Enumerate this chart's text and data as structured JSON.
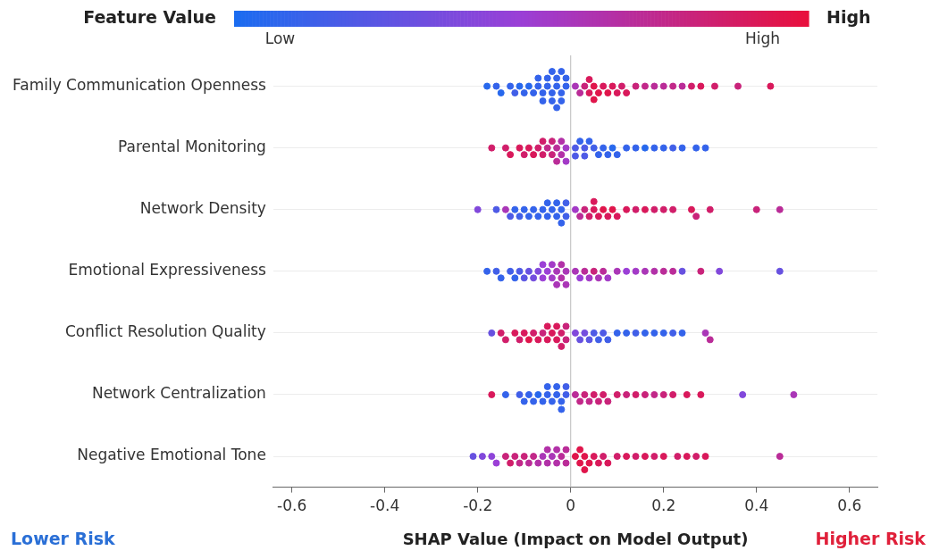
{
  "chart_data": {
    "type": "scatter",
    "orientation": "horizontal",
    "xlabel": "SHAP Value (Impact on Model Output)",
    "clabel": "Feature Value",
    "clim": [
      0,
      1
    ],
    "cticks": [
      {
        "value": 0.08,
        "label": "Low"
      },
      {
        "value": 0.92,
        "label": "High"
      }
    ],
    "annotations": [
      "High",
      "Lower Risk",
      "Higher Risk"
    ],
    "categories": [
      "Family Communication Openness",
      "Parental Monitoring",
      "Network Density",
      "Emotional Expressiveness",
      "Conflict Resolution Quality",
      "Network Centralization",
      "Negative Emotional Tone"
    ],
    "xlim": [
      -0.64,
      0.66
    ],
    "xticks": [
      -0.6,
      -0.4,
      -0.2,
      0,
      0.2,
      0.4,
      0.6
    ],
    "grid": "y",
    "legend": false,
    "marker": "circle",
    "ref_lines": [
      {
        "axis": "x",
        "value": 0,
        "color": "#bbbbbb"
      }
    ],
    "series": [
      {
        "x": [
          "Family Communication Openness",
          "Family Communication Openness",
          "Family Communication Openness",
          "Family Communication Openness",
          "Family Communication Openness",
          "Family Communication Openness",
          "Family Communication Openness",
          "Family Communication Openness",
          "Family Communication Openness",
          "Family Communication Openness",
          "Family Communication Openness",
          "Family Communication Openness",
          "Family Communication Openness",
          "Family Communication Openness",
          "Family Communication Openness",
          "Family Communication Openness",
          "Family Communication Openness",
          "Family Communication Openness",
          "Family Communication Openness",
          "Family Communication Openness",
          "Family Communication Openness",
          "Family Communication Openness",
          "Family Communication Openness",
          "Family Communication Openness",
          "Family Communication Openness",
          "Family Communication Openness",
          "Family Communication Openness",
          "Family Communication Openness",
          "Family Communication Openness",
          "Family Communication Openness",
          "Family Communication Openness",
          "Family Communication Openness",
          "Family Communication Openness",
          "Family Communication Openness",
          "Family Communication Openness",
          "Family Communication Openness",
          "Family Communication Openness",
          "Family Communication Openness",
          "Family Communication Openness",
          "Family Communication Openness",
          "Family Communication Openness",
          "Family Communication Openness",
          "Family Communication Openness",
          "Family Communication Openness",
          "Family Communication Openness",
          "Family Communication Openness",
          "Family Communication Openness",
          "Family Communication Openness",
          "Family Communication Openness",
          "Family Communication Openness",
          "Family Communication Openness"
        ],
        "values": [
          -0.18,
          -0.16,
          -0.15,
          -0.13,
          -0.12,
          -0.11,
          -0.1,
          -0.09,
          -0.08,
          -0.07,
          -0.07,
          -0.06,
          -0.06,
          -0.05,
          -0.05,
          -0.04,
          -0.04,
          -0.04,
          -0.03,
          -0.03,
          -0.03,
          -0.02,
          -0.02,
          -0.02,
          -0.01,
          -0.01,
          0.01,
          0.02,
          0.03,
          0.04,
          0.04,
          0.05,
          0.05,
          0.06,
          0.07,
          0.08,
          0.09,
          0.1,
          0.11,
          0.12,
          0.14,
          0.16,
          0.18,
          0.2,
          0.22,
          0.24,
          0.26,
          0.28,
          0.31,
          0.36,
          0.43
        ],
        "colors": [
          "#2768ed",
          "#3463eb",
          "#2768ed",
          "#3463eb",
          "#415fe8",
          "#2768ed",
          "#3463eb",
          "#2768ed",
          "#3463eb",
          "#3463eb",
          "#3463eb",
          "#3463eb",
          "#3463eb",
          "#3463eb",
          "#3463eb",
          "#3463eb",
          "#3463eb",
          "#3463eb",
          "#3463eb",
          "#3463eb",
          "#3463eb",
          "#3463eb",
          "#3463eb",
          "#3463eb",
          "#3463eb",
          "#3463eb",
          "#aa36b7",
          "#ba2c98",
          "#c9237a",
          "#d9195b",
          "#d9195b",
          "#e0154b",
          "#e0154b",
          "#e0154b",
          "#d9195b",
          "#e0154b",
          "#d9195b",
          "#d9195b",
          "#d11e6a",
          "#d9195b",
          "#c9237a",
          "#c22889",
          "#ba2c98",
          "#ba2c98",
          "#c22889",
          "#ba2c98",
          "#d11e6a",
          "#d9195b",
          "#d11e6a",
          "#c9237a",
          "#d9195b"
        ],
        "cvalues": [
          0.05,
          0.1,
          0.05,
          0.1,
          0.15,
          0.05,
          0.1,
          0.05,
          0.1,
          0.1,
          0.1,
          0.1,
          0.1,
          0.1,
          0.1,
          0.1,
          0.1,
          0.1,
          0.1,
          0.1,
          0.1,
          0.1,
          0.1,
          0.1,
          0.1,
          0.1,
          0.6,
          0.7,
          0.8,
          0.9,
          0.9,
          0.95,
          0.95,
          0.95,
          0.9,
          0.95,
          0.9,
          0.9,
          0.85,
          0.9,
          0.8,
          0.75,
          0.7,
          0.7,
          0.75,
          0.7,
          0.85,
          0.9,
          0.85,
          0.8,
          0.9
        ]
      },
      {
        "x": [
          "Parental Monitoring",
          "Parental Monitoring",
          "Parental Monitoring",
          "Parental Monitoring",
          "Parental Monitoring",
          "Parental Monitoring",
          "Parental Monitoring",
          "Parental Monitoring",
          "Parental Monitoring",
          "Parental Monitoring",
          "Parental Monitoring",
          "Parental Monitoring",
          "Parental Monitoring",
          "Parental Monitoring",
          "Parental Monitoring",
          "Parental Monitoring",
          "Parental Monitoring",
          "Parental Monitoring",
          "Parental Monitoring",
          "Parental Monitoring",
          "Parental Monitoring",
          "Parental Monitoring",
          "Parental Monitoring",
          "Parental Monitoring",
          "Parental Monitoring",
          "Parental Monitoring",
          "Parental Monitoring",
          "Parental Monitoring",
          "Parental Monitoring",
          "Parental Monitoring",
          "Parental Monitoring",
          "Parental Monitoring",
          "Parental Monitoring",
          "Parental Monitoring",
          "Parental Monitoring",
          "Parental Monitoring",
          "Parental Monitoring",
          "Parental Monitoring",
          "Parental Monitoring",
          "Parental Monitoring"
        ],
        "values": [
          -0.17,
          -0.14,
          -0.13,
          -0.11,
          -0.1,
          -0.09,
          -0.08,
          -0.07,
          -0.06,
          -0.06,
          -0.05,
          -0.04,
          -0.04,
          -0.03,
          -0.03,
          -0.02,
          -0.02,
          -0.01,
          -0.01,
          0.01,
          0.01,
          0.02,
          0.03,
          0.03,
          0.04,
          0.05,
          0.06,
          0.07,
          0.08,
          0.09,
          0.1,
          0.12,
          0.14,
          0.16,
          0.18,
          0.2,
          0.22,
          0.24,
          0.27,
          0.29
        ],
        "colors": [
          "#d11e6a",
          "#d11e6a",
          "#d9195b",
          "#d9195b",
          "#d11e6a",
          "#d9195b",
          "#d9195b",
          "#d11e6a",
          "#d11e6a",
          "#d11e6a",
          "#c22889",
          "#c9237a",
          "#c9237a",
          "#ba2c98",
          "#ba2c98",
          "#b231a8",
          "#b231a8",
          "#a33ac7",
          "#a33ac7",
          "#4e5ae6",
          "#4e5ae6",
          "#3463eb",
          "#4e5ae6",
          "#4e5ae6",
          "#3463eb",
          "#415fe8",
          "#3463eb",
          "#3463eb",
          "#3463eb",
          "#2768ed",
          "#3463eb",
          "#3463eb",
          "#3463eb",
          "#2768ed",
          "#3463eb",
          "#3463eb",
          "#415fe8",
          "#3463eb",
          "#3463eb",
          "#3463eb"
        ],
        "cvalues": [
          0.85,
          0.85,
          0.9,
          0.9,
          0.85,
          0.9,
          0.9,
          0.85,
          0.85,
          0.85,
          0.75,
          0.8,
          0.8,
          0.7,
          0.7,
          0.65,
          0.65,
          0.55,
          0.55,
          0.2,
          0.2,
          0.1,
          0.2,
          0.2,
          0.1,
          0.15,
          0.1,
          0.1,
          0.1,
          0.05,
          0.1,
          0.1,
          0.1,
          0.05,
          0.1,
          0.1,
          0.15,
          0.1,
          0.1,
          0.1
        ]
      },
      {
        "x": [
          "Network Density",
          "Network Density",
          "Network Density",
          "Network Density",
          "Network Density",
          "Network Density",
          "Network Density",
          "Network Density",
          "Network Density",
          "Network Density",
          "Network Density",
          "Network Density",
          "Network Density",
          "Network Density",
          "Network Density",
          "Network Density",
          "Network Density",
          "Network Density",
          "Network Density",
          "Network Density",
          "Network Density",
          "Network Density",
          "Network Density",
          "Network Density",
          "Network Density",
          "Network Density",
          "Network Density",
          "Network Density",
          "Network Density",
          "Network Density",
          "Network Density",
          "Network Density",
          "Network Density",
          "Network Density",
          "Network Density",
          "Network Density",
          "Network Density",
          "Network Density",
          "Network Density",
          "Network Density",
          "Network Density",
          "Network Density"
        ],
        "values": [
          -0.2,
          -0.16,
          -0.14,
          -0.13,
          -0.12,
          -0.11,
          -0.1,
          -0.09,
          -0.08,
          -0.07,
          -0.06,
          -0.05,
          -0.05,
          -0.04,
          -0.03,
          -0.03,
          -0.02,
          -0.02,
          -0.01,
          -0.01,
          0.01,
          0.02,
          0.03,
          0.04,
          0.05,
          0.05,
          0.06,
          0.07,
          0.08,
          0.09,
          0.1,
          0.12,
          0.14,
          0.16,
          0.18,
          0.2,
          0.22,
          0.26,
          0.27,
          0.3,
          0.4,
          0.45
        ],
        "colors": [
          "#8148db",
          "#4e5ae6",
          "#aa36b7",
          "#4e5ae6",
          "#3463eb",
          "#415fe8",
          "#3463eb",
          "#3463eb",
          "#3463eb",
          "#3463eb",
          "#3463eb",
          "#3463eb",
          "#3463eb",
          "#3463eb",
          "#3463eb",
          "#3463eb",
          "#3463eb",
          "#3463eb",
          "#415fe8",
          "#415fe8",
          "#a33ac7",
          "#ba2c98",
          "#c9237a",
          "#d11e6a",
          "#d9195b",
          "#d9195b",
          "#d9195b",
          "#e0154b",
          "#d9195b",
          "#e0154b",
          "#d9195b",
          "#d9195b",
          "#d11e6a",
          "#d9195b",
          "#d11e6a",
          "#d11e6a",
          "#d11e6a",
          "#d9195b",
          "#c9237a",
          "#d11e6a",
          "#c9237a",
          "#ba2c98"
        ],
        "cvalues": [
          0.4,
          0.2,
          0.6,
          0.2,
          0.1,
          0.15,
          0.1,
          0.1,
          0.1,
          0.1,
          0.1,
          0.1,
          0.1,
          0.1,
          0.1,
          0.1,
          0.1,
          0.1,
          0.15,
          0.15,
          0.55,
          0.7,
          0.8,
          0.85,
          0.9,
          0.9,
          0.9,
          0.95,
          0.9,
          0.95,
          0.9,
          0.9,
          0.85,
          0.9,
          0.85,
          0.85,
          0.85,
          0.9,
          0.8,
          0.85,
          0.8,
          0.7
        ]
      },
      {
        "x": [
          "Emotional Expressiveness",
          "Emotional Expressiveness",
          "Emotional Expressiveness",
          "Emotional Expressiveness",
          "Emotional Expressiveness",
          "Emotional Expressiveness",
          "Emotional Expressiveness",
          "Emotional Expressiveness",
          "Emotional Expressiveness",
          "Emotional Expressiveness",
          "Emotional Expressiveness",
          "Emotional Expressiveness",
          "Emotional Expressiveness",
          "Emotional Expressiveness",
          "Emotional Expressiveness",
          "Emotional Expressiveness",
          "Emotional Expressiveness",
          "Emotional Expressiveness",
          "Emotional Expressiveness",
          "Emotional Expressiveness",
          "Emotional Expressiveness",
          "Emotional Expressiveness",
          "Emotional Expressiveness",
          "Emotional Expressiveness",
          "Emotional Expressiveness",
          "Emotional Expressiveness",
          "Emotional Expressiveness",
          "Emotional Expressiveness",
          "Emotional Expressiveness",
          "Emotional Expressiveness",
          "Emotional Expressiveness",
          "Emotional Expressiveness",
          "Emotional Expressiveness",
          "Emotional Expressiveness",
          "Emotional Expressiveness",
          "Emotional Expressiveness",
          "Emotional Expressiveness",
          "Emotional Expressiveness",
          "Emotional Expressiveness",
          "Emotional Expressiveness"
        ],
        "values": [
          -0.18,
          -0.16,
          -0.15,
          -0.13,
          -0.12,
          -0.11,
          -0.1,
          -0.09,
          -0.08,
          -0.07,
          -0.06,
          -0.06,
          -0.05,
          -0.04,
          -0.04,
          -0.03,
          -0.03,
          -0.02,
          -0.02,
          -0.01,
          -0.01,
          0.01,
          0.02,
          0.03,
          0.04,
          0.05,
          0.06,
          0.07,
          0.08,
          0.1,
          0.12,
          0.14,
          0.16,
          0.18,
          0.2,
          0.22,
          0.24,
          0.28,
          0.32,
          0.45
        ],
        "colors": [
          "#3463eb",
          "#415fe8",
          "#3463eb",
          "#415fe8",
          "#3463eb",
          "#4e5ae6",
          "#5b56e3",
          "#6751e0",
          "#744dde",
          "#8148db",
          "#9b3fd6",
          "#9b3fd6",
          "#9b3fd6",
          "#a33ac7",
          "#a33ac7",
          "#aa36b7",
          "#aa36b7",
          "#b231a8",
          "#b231a8",
          "#aa36b7",
          "#aa36b7",
          "#aa36b7",
          "#9b3fd6",
          "#ba2c98",
          "#a33ac7",
          "#c9237a",
          "#aa36b7",
          "#ba2c98",
          "#a33ac7",
          "#aa36b7",
          "#9b3fd6",
          "#a33ac7",
          "#aa36b7",
          "#b231a8",
          "#ba2c98",
          "#ba2c98",
          "#6751e0",
          "#c9237a",
          "#8148db",
          "#6751e0"
        ],
        "cvalues": [
          0.1,
          0.15,
          0.1,
          0.15,
          0.1,
          0.2,
          0.25,
          0.3,
          0.35,
          0.4,
          0.5,
          0.5,
          0.5,
          0.55,
          0.55,
          0.6,
          0.6,
          0.65,
          0.65,
          0.6,
          0.6,
          0.6,
          0.5,
          0.7,
          0.55,
          0.8,
          0.6,
          0.7,
          0.55,
          0.6,
          0.5,
          0.55,
          0.6,
          0.65,
          0.7,
          0.7,
          0.3,
          0.8,
          0.4,
          0.3
        ]
      },
      {
        "x": [
          "Conflict Resolution Quality",
          "Conflict Resolution Quality",
          "Conflict Resolution Quality",
          "Conflict Resolution Quality",
          "Conflict Resolution Quality",
          "Conflict Resolution Quality",
          "Conflict Resolution Quality",
          "Conflict Resolution Quality",
          "Conflict Resolution Quality",
          "Conflict Resolution Quality",
          "Conflict Resolution Quality",
          "Conflict Resolution Quality",
          "Conflict Resolution Quality",
          "Conflict Resolution Quality",
          "Conflict Resolution Quality",
          "Conflict Resolution Quality",
          "Conflict Resolution Quality",
          "Conflict Resolution Quality",
          "Conflict Resolution Quality",
          "Conflict Resolution Quality",
          "Conflict Resolution Quality",
          "Conflict Resolution Quality",
          "Conflict Resolution Quality",
          "Conflict Resolution Quality",
          "Conflict Resolution Quality",
          "Conflict Resolution Quality",
          "Conflict Resolution Quality",
          "Conflict Resolution Quality",
          "Conflict Resolution Quality",
          "Conflict Resolution Quality",
          "Conflict Resolution Quality",
          "Conflict Resolution Quality",
          "Conflict Resolution Quality",
          "Conflict Resolution Quality",
          "Conflict Resolution Quality",
          "Conflict Resolution Quality",
          "Conflict Resolution Quality"
        ],
        "values": [
          -0.17,
          -0.15,
          -0.14,
          -0.12,
          -0.11,
          -0.1,
          -0.09,
          -0.08,
          -0.07,
          -0.06,
          -0.05,
          -0.05,
          -0.04,
          -0.03,
          -0.03,
          -0.02,
          -0.02,
          -0.01,
          -0.01,
          0.01,
          0.02,
          0.03,
          0.04,
          0.05,
          0.06,
          0.07,
          0.08,
          0.1,
          0.12,
          0.14,
          0.16,
          0.18,
          0.2,
          0.22,
          0.24,
          0.29,
          0.3
        ],
        "colors": [
          "#6751e0",
          "#d11e6a",
          "#d11e6a",
          "#d9195b",
          "#d11e6a",
          "#d9195b",
          "#e0154b",
          "#d11e6a",
          "#d9195b",
          "#c9237a",
          "#d9195b",
          "#d9195b",
          "#d9195b",
          "#d9195b",
          "#d9195b",
          "#d11e6a",
          "#d11e6a",
          "#c9237a",
          "#c9237a",
          "#8148db",
          "#6751e0",
          "#744dde",
          "#5b56e3",
          "#4e5ae6",
          "#415fe8",
          "#4e5ae6",
          "#415fe8",
          "#3463eb",
          "#3463eb",
          "#415fe8",
          "#3463eb",
          "#3463eb",
          "#3463eb",
          "#415fe8",
          "#3463eb",
          "#aa36b7",
          "#ba2c98"
        ],
        "cvalues": [
          0.3,
          0.85,
          0.85,
          0.9,
          0.85,
          0.9,
          0.95,
          0.85,
          0.9,
          0.8,
          0.9,
          0.9,
          0.9,
          0.9,
          0.9,
          0.85,
          0.85,
          0.8,
          0.8,
          0.4,
          0.3,
          0.35,
          0.25,
          0.2,
          0.15,
          0.2,
          0.15,
          0.1,
          0.1,
          0.15,
          0.1,
          0.1,
          0.1,
          0.15,
          0.1,
          0.6,
          0.7
        ]
      },
      {
        "x": [
          "Network Centralization",
          "Network Centralization",
          "Network Centralization",
          "Network Centralization",
          "Network Centralization",
          "Network Centralization",
          "Network Centralization",
          "Network Centralization",
          "Network Centralization",
          "Network Centralization",
          "Network Centralization",
          "Network Centralization",
          "Network Centralization",
          "Network Centralization",
          "Network Centralization",
          "Network Centralization",
          "Network Centralization",
          "Network Centralization",
          "Network Centralization",
          "Network Centralization",
          "Network Centralization",
          "Network Centralization",
          "Network Centralization",
          "Network Centralization",
          "Network Centralization",
          "Network Centralization",
          "Network Centralization",
          "Network Centralization",
          "Network Centralization",
          "Network Centralization",
          "Network Centralization",
          "Network Centralization",
          "Network Centralization",
          "Network Centralization",
          "Network Centralization",
          "Network Centralization"
        ],
        "values": [
          -0.17,
          -0.14,
          -0.11,
          -0.1,
          -0.09,
          -0.08,
          -0.07,
          -0.06,
          -0.05,
          -0.05,
          -0.04,
          -0.03,
          -0.03,
          -0.02,
          -0.02,
          -0.01,
          -0.01,
          0.01,
          0.02,
          0.03,
          0.04,
          0.05,
          0.06,
          0.07,
          0.08,
          0.1,
          0.12,
          0.14,
          0.16,
          0.18,
          0.2,
          0.22,
          0.25,
          0.28,
          0.37,
          0.48
        ],
        "colors": [
          "#d9195b",
          "#3463eb",
          "#415fe8",
          "#3463eb",
          "#3463eb",
          "#3463eb",
          "#2768ed",
          "#3463eb",
          "#3463eb",
          "#3463eb",
          "#3463eb",
          "#3463eb",
          "#3463eb",
          "#3463eb",
          "#3463eb",
          "#415fe8",
          "#415fe8",
          "#ba2c98",
          "#c22889",
          "#c9237a",
          "#c22889",
          "#d11e6a",
          "#c9237a",
          "#d11e6a",
          "#c9237a",
          "#d11e6a",
          "#c9237a",
          "#d11e6a",
          "#c9237a",
          "#c22889",
          "#c9237a",
          "#d11e6a",
          "#d9195b",
          "#d9195b",
          "#8148db",
          "#aa36b7"
        ],
        "cvalues": [
          0.9,
          0.1,
          0.15,
          0.1,
          0.1,
          0.1,
          0.05,
          0.1,
          0.1,
          0.1,
          0.1,
          0.1,
          0.1,
          0.1,
          0.1,
          0.15,
          0.15,
          0.7,
          0.75,
          0.8,
          0.75,
          0.85,
          0.8,
          0.85,
          0.8,
          0.85,
          0.8,
          0.85,
          0.8,
          0.75,
          0.8,
          0.85,
          0.9,
          0.9,
          0.4,
          0.6
        ]
      },
      {
        "x": [
          "Negative Emotional Tone",
          "Negative Emotional Tone",
          "Negative Emotional Tone",
          "Negative Emotional Tone",
          "Negative Emotional Tone",
          "Negative Emotional Tone",
          "Negative Emotional Tone",
          "Negative Emotional Tone",
          "Negative Emotional Tone",
          "Negative Emotional Tone",
          "Negative Emotional Tone",
          "Negative Emotional Tone",
          "Negative Emotional Tone",
          "Negative Emotional Tone",
          "Negative Emotional Tone",
          "Negative Emotional Tone",
          "Negative Emotional Tone",
          "Negative Emotional Tone",
          "Negative Emotional Tone",
          "Negative Emotional Tone",
          "Negative Emotional Tone",
          "Negative Emotional Tone",
          "Negative Emotional Tone",
          "Negative Emotional Tone",
          "Negative Emotional Tone",
          "Negative Emotional Tone",
          "Negative Emotional Tone",
          "Negative Emotional Tone",
          "Negative Emotional Tone",
          "Negative Emotional Tone",
          "Negative Emotional Tone",
          "Negative Emotional Tone",
          "Negative Emotional Tone",
          "Negative Emotional Tone",
          "Negative Emotional Tone",
          "Negative Emotional Tone",
          "Negative Emotional Tone",
          "Negative Emotional Tone",
          "Negative Emotional Tone",
          "Negative Emotional Tone",
          "Negative Emotional Tone",
          "Negative Emotional Tone"
        ],
        "values": [
          -0.21,
          -0.19,
          -0.17,
          -0.16,
          -0.14,
          -0.13,
          -0.12,
          -0.11,
          -0.1,
          -0.09,
          -0.08,
          -0.07,
          -0.06,
          -0.05,
          -0.05,
          -0.04,
          -0.03,
          -0.03,
          -0.02,
          -0.01,
          -0.01,
          0.01,
          0.02,
          0.02,
          0.03,
          0.03,
          0.04,
          0.05,
          0.06,
          0.07,
          0.08,
          0.1,
          0.12,
          0.14,
          0.16,
          0.18,
          0.2,
          0.23,
          0.25,
          0.27,
          0.29,
          0.45
        ],
        "colors": [
          "#6751e0",
          "#8148db",
          "#8e44d9",
          "#9b3fd6",
          "#c9237a",
          "#d11e6a",
          "#c9237a",
          "#c22889",
          "#c9237a",
          "#ba2c98",
          "#c22889",
          "#b231a8",
          "#aa36b7",
          "#b231a8",
          "#b231a8",
          "#aa36b7",
          "#b231a8",
          "#b231a8",
          "#ba2c98",
          "#ba2c98",
          "#ba2c98",
          "#e0154b",
          "#e0154b",
          "#e0154b",
          "#e0154b",
          "#e0154b",
          "#e0154b",
          "#d9195b",
          "#d9195b",
          "#d11e6a",
          "#d9195b",
          "#d11e6a",
          "#d9195b",
          "#d11e6a",
          "#d9195b",
          "#d11e6a",
          "#d9195b",
          "#d11e6a",
          "#d9195b",
          "#d11e6a",
          "#d9195b",
          "#ba2c98"
        ],
        "cvalues": [
          0.3,
          0.4,
          0.45,
          0.5,
          0.8,
          0.85,
          0.8,
          0.75,
          0.8,
          0.7,
          0.75,
          0.65,
          0.6,
          0.65,
          0.65,
          0.6,
          0.65,
          0.65,
          0.7,
          0.7,
          0.7,
          0.95,
          0.95,
          0.95,
          0.95,
          0.95,
          0.95,
          0.9,
          0.9,
          0.85,
          0.9,
          0.85,
          0.9,
          0.85,
          0.9,
          0.85,
          0.9,
          0.85,
          0.9,
          0.85,
          0.9,
          0.7
        ]
      }
    ]
  }
}
